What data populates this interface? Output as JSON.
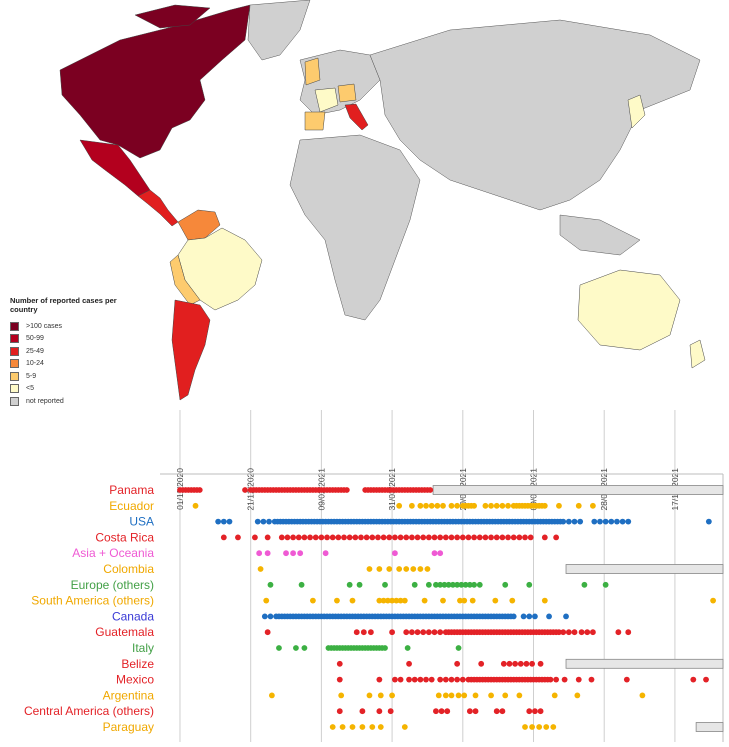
{
  "map": {
    "legend": {
      "title": "Number of reported cases per country",
      "items": [
        {
          "label": ">100 cases",
          "color": "#7b0021"
        },
        {
          "label": "50-99",
          "color": "#b3001e"
        },
        {
          "label": "25-49",
          "color": "#e11f1f"
        },
        {
          "label": "10-24",
          "color": "#f6883a"
        },
        {
          "label": "5-9",
          "color": "#fdcb6e"
        },
        {
          "label": "<5",
          "color": "#fefac8"
        },
        {
          "label": "not reported",
          "color": "#d0d0d0"
        }
      ]
    }
  },
  "chart_data": {
    "type": "scatter",
    "subtype": "timeline",
    "x_axis": {
      "ticks": [
        "01/11/2020",
        "21/12/2020",
        "09/02/2021",
        "31/03/2021",
        "20/05/2021",
        "09/07/2021",
        "28/08/2021",
        "17/10/2021"
      ],
      "range": [
        "2020-10-20",
        "2021-11-20"
      ],
      "tick_label_rotation": "vertical",
      "grid": true
    },
    "series": [
      {
        "name": "Panama",
        "color": "#e32227",
        "dates": [
          "2020-11-01",
          "2020-11-03",
          "2020-11-05",
          "2020-11-07",
          "2020-11-09",
          "2020-11-11",
          "2020-11-13",
          "2020-11-15",
          "2020-12-17",
          "2020-12-21",
          "2020-12-23",
          "2020-12-25",
          "2020-12-27",
          "2020-12-29",
          "2020-12-31",
          "2021-01-02",
          "2021-01-04",
          "2021-01-06",
          "2021-01-08",
          "2021-01-10",
          "2021-01-12",
          "2021-01-14",
          "2021-01-16",
          "2021-01-18",
          "2021-01-20",
          "2021-01-22",
          "2021-01-24",
          "2021-01-26",
          "2021-01-28",
          "2021-01-30",
          "2021-02-01",
          "2021-02-03",
          "2021-02-05",
          "2021-02-07",
          "2021-02-09",
          "2021-02-11",
          "2021-02-13",
          "2021-02-15",
          "2021-02-17",
          "2021-02-19",
          "2021-02-21",
          "2021-02-23",
          "2021-02-25",
          "2021-02-27",
          "2021-03-12",
          "2021-03-14",
          "2021-03-16",
          "2021-03-18",
          "2021-03-20",
          "2021-03-22",
          "2021-03-24",
          "2021-03-26",
          "2021-03-28",
          "2021-03-30",
          "2021-04-01",
          "2021-04-03",
          "2021-04-05",
          "2021-04-07",
          "2021-04-09",
          "2021-04-11",
          "2021-04-13",
          "2021-04-15",
          "2021-04-17",
          "2021-04-19",
          "2021-04-21",
          "2021-04-23",
          "2021-04-25",
          "2021-04-27"
        ],
        "not_reported_from": "2021-04-29"
      },
      {
        "name": "Ecuador",
        "color": "#f5b400",
        "dates": [
          "2020-11-12",
          "2021-04-05",
          "2021-04-14",
          "2021-04-20",
          "2021-04-24",
          "2021-04-28",
          "2021-05-02",
          "2021-05-06",
          "2021-05-12",
          "2021-05-16",
          "2021-05-20",
          "2021-05-22",
          "2021-05-24",
          "2021-05-26",
          "2021-05-28",
          "2021-06-05",
          "2021-06-09",
          "2021-06-13",
          "2021-06-17",
          "2021-06-21",
          "2021-06-25",
          "2021-06-27",
          "2021-06-29",
          "2021-07-01",
          "2021-07-03",
          "2021-07-05",
          "2021-07-07",
          "2021-07-09",
          "2021-07-11",
          "2021-07-13",
          "2021-07-15",
          "2021-07-17",
          "2021-07-27",
          "2021-08-10",
          "2021-08-20"
        ]
      },
      {
        "name": "USA",
        "color": "#1f6fc2",
        "dates": [
          "2020-11-28",
          "2020-12-02",
          "2020-12-06",
          "2020-12-26",
          "2020-12-30",
          "2021-01-03",
          "2021-01-07",
          "2021-01-09",
          "2021-01-11",
          "2021-01-13",
          "2021-01-15",
          "2021-01-17",
          "2021-01-19",
          "2021-01-21",
          "2021-01-23",
          "2021-01-25",
          "2021-01-27",
          "2021-01-29",
          "2021-01-31",
          "2021-02-02",
          "2021-02-04",
          "2021-02-06",
          "2021-02-08",
          "2021-02-10",
          "2021-02-12",
          "2021-02-14",
          "2021-02-16",
          "2021-02-18",
          "2021-02-20",
          "2021-02-22",
          "2021-02-24",
          "2021-02-26",
          "2021-02-28",
          "2021-03-02",
          "2021-03-04",
          "2021-03-06",
          "2021-03-08",
          "2021-03-10",
          "2021-03-12",
          "2021-03-14",
          "2021-03-16",
          "2021-03-18",
          "2021-03-20",
          "2021-03-22",
          "2021-03-24",
          "2021-03-26",
          "2021-03-28",
          "2021-03-30",
          "2021-04-01",
          "2021-04-03",
          "2021-04-05",
          "2021-04-07",
          "2021-04-09",
          "2021-04-11",
          "2021-04-13",
          "2021-04-15",
          "2021-04-17",
          "2021-04-19",
          "2021-04-21",
          "2021-04-23",
          "2021-04-25",
          "2021-04-27",
          "2021-04-29",
          "2021-05-01",
          "2021-05-03",
          "2021-05-05",
          "2021-05-07",
          "2021-05-09",
          "2021-05-11",
          "2021-05-13",
          "2021-05-15",
          "2021-05-17",
          "2021-05-19",
          "2021-05-21",
          "2021-05-23",
          "2021-05-25",
          "2021-05-27",
          "2021-05-29",
          "2021-05-31",
          "2021-06-02",
          "2021-06-04",
          "2021-06-06",
          "2021-06-08",
          "2021-06-10",
          "2021-06-12",
          "2021-06-14",
          "2021-06-16",
          "2021-06-18",
          "2021-06-20",
          "2021-06-22",
          "2021-06-24",
          "2021-06-26",
          "2021-06-28",
          "2021-06-30",
          "2021-07-02",
          "2021-07-04",
          "2021-07-06",
          "2021-07-08",
          "2021-07-10",
          "2021-07-12",
          "2021-07-14",
          "2021-07-16",
          "2021-07-18",
          "2021-07-20",
          "2021-07-22",
          "2021-07-24",
          "2021-07-26",
          "2021-07-28",
          "2021-07-30",
          "2021-08-03",
          "2021-08-07",
          "2021-08-11",
          "2021-08-21",
          "2021-08-25",
          "2021-08-29",
          "2021-09-02",
          "2021-09-06",
          "2021-09-10",
          "2021-09-14",
          "2021-11-10"
        ]
      },
      {
        "name": "Costa Rica",
        "color": "#e32227",
        "dates": [
          "2020-12-02",
          "2020-12-12",
          "2020-12-24",
          "2021-01-02",
          "2021-01-12",
          "2021-01-16",
          "2021-01-20",
          "2021-01-24",
          "2021-01-28",
          "2021-02-01",
          "2021-02-05",
          "2021-02-09",
          "2021-02-13",
          "2021-02-17",
          "2021-02-21",
          "2021-02-25",
          "2021-03-01",
          "2021-03-05",
          "2021-03-09",
          "2021-03-13",
          "2021-03-17",
          "2021-03-21",
          "2021-03-25",
          "2021-03-29",
          "2021-04-02",
          "2021-04-06",
          "2021-04-10",
          "2021-04-14",
          "2021-04-18",
          "2021-04-22",
          "2021-04-26",
          "2021-04-30",
          "2021-05-04",
          "2021-05-08",
          "2021-05-12",
          "2021-05-16",
          "2021-05-20",
          "2021-05-24",
          "2021-05-28",
          "2021-06-01",
          "2021-06-05",
          "2021-06-09",
          "2021-06-13",
          "2021-06-17",
          "2021-06-21",
          "2021-06-25",
          "2021-06-29",
          "2021-07-03",
          "2021-07-07",
          "2021-07-17",
          "2021-07-25"
        ]
      },
      {
        "name": "Asia + Oceania",
        "color": "#ef5ad4",
        "dates": [
          "2020-12-27",
          "2021-01-02",
          "2021-01-15",
          "2021-01-20",
          "2021-01-25",
          "2021-02-12",
          "2021-04-02",
          "2021-04-30",
          "2021-05-04"
        ]
      },
      {
        "name": "Colombia",
        "color": "#f5b400",
        "dates": [
          "2020-12-28",
          "2021-03-15",
          "2021-03-22",
          "2021-03-29",
          "2021-04-05",
          "2021-04-10",
          "2021-04-15",
          "2021-04-20",
          "2021-04-25"
        ],
        "not_reported_from": "2021-08-01"
      },
      {
        "name": "Europe (others)",
        "color": "#3cb043",
        "dates": [
          "2021-01-04",
          "2021-01-26",
          "2021-03-01",
          "2021-03-08",
          "2021-03-26",
          "2021-04-16",
          "2021-04-26",
          "2021-05-01",
          "2021-05-04",
          "2021-05-07",
          "2021-05-10",
          "2021-05-13",
          "2021-05-16",
          "2021-05-19",
          "2021-05-22",
          "2021-05-25",
          "2021-05-28",
          "2021-06-01",
          "2021-06-19",
          "2021-07-06",
          "2021-08-14",
          "2021-08-29"
        ]
      },
      {
        "name": "South America (others)",
        "color": "#f5b400",
        "dates": [
          "2021-01-01",
          "2021-02-03",
          "2021-02-20",
          "2021-03-03",
          "2021-03-22",
          "2021-03-25",
          "2021-03-28",
          "2021-03-31",
          "2021-04-03",
          "2021-04-06",
          "2021-04-09",
          "2021-04-23",
          "2021-05-06",
          "2021-05-18",
          "2021-05-21",
          "2021-05-27",
          "2021-06-12",
          "2021-06-24",
          "2021-07-17",
          "2021-11-13"
        ]
      },
      {
        "name": "Canada",
        "color": "#1f6fc2",
        "dates": [
          "2020-12-31",
          "2021-01-04",
          "2021-01-08",
          "2021-01-10",
          "2021-01-12",
          "2021-01-14",
          "2021-01-16",
          "2021-01-18",
          "2021-01-20",
          "2021-01-22",
          "2021-01-24",
          "2021-01-26",
          "2021-01-28",
          "2021-01-30",
          "2021-02-01",
          "2021-02-03",
          "2021-02-05",
          "2021-02-07",
          "2021-02-09",
          "2021-02-11",
          "2021-02-13",
          "2021-02-15",
          "2021-02-17",
          "2021-02-19",
          "2021-02-21",
          "2021-02-23",
          "2021-02-25",
          "2021-02-27",
          "2021-03-01",
          "2021-03-03",
          "2021-03-05",
          "2021-03-07",
          "2021-03-09",
          "2021-03-11",
          "2021-03-13",
          "2021-03-15",
          "2021-03-17",
          "2021-03-19",
          "2021-03-21",
          "2021-03-23",
          "2021-03-25",
          "2021-03-27",
          "2021-03-29",
          "2021-03-31",
          "2021-04-02",
          "2021-04-04",
          "2021-04-06",
          "2021-04-08",
          "2021-04-10",
          "2021-04-12",
          "2021-04-14",
          "2021-04-16",
          "2021-04-18",
          "2021-04-20",
          "2021-04-22",
          "2021-04-24",
          "2021-04-26",
          "2021-04-28",
          "2021-04-30",
          "2021-05-02",
          "2021-05-04",
          "2021-05-06",
          "2021-05-08",
          "2021-05-10",
          "2021-05-12",
          "2021-05-14",
          "2021-05-16",
          "2021-05-18",
          "2021-05-20",
          "2021-05-22",
          "2021-05-24",
          "2021-05-26",
          "2021-05-28",
          "2021-05-30",
          "2021-06-01",
          "2021-06-03",
          "2021-06-05",
          "2021-06-07",
          "2021-06-09",
          "2021-06-11",
          "2021-06-13",
          "2021-06-15",
          "2021-06-17",
          "2021-06-19",
          "2021-06-21",
          "2021-06-23",
          "2021-06-25",
          "2021-07-02",
          "2021-07-06",
          "2021-07-10",
          "2021-07-20",
          "2021-08-01"
        ]
      },
      {
        "name": "Guatemala",
        "color": "#e32227",
        "dates": [
          "2021-01-02",
          "2021-03-06",
          "2021-03-11",
          "2021-03-16",
          "2021-03-31",
          "2021-04-10",
          "2021-04-14",
          "2021-04-18",
          "2021-04-22",
          "2021-04-26",
          "2021-04-30",
          "2021-05-04",
          "2021-05-08",
          "2021-05-10",
          "2021-05-12",
          "2021-05-14",
          "2021-05-16",
          "2021-05-18",
          "2021-05-20",
          "2021-05-22",
          "2021-05-24",
          "2021-05-26",
          "2021-05-28",
          "2021-05-30",
          "2021-06-01",
          "2021-06-03",
          "2021-06-05",
          "2021-06-07",
          "2021-06-09",
          "2021-06-11",
          "2021-06-13",
          "2021-06-15",
          "2021-06-17",
          "2021-06-19",
          "2021-06-21",
          "2021-06-23",
          "2021-06-25",
          "2021-06-27",
          "2021-06-29",
          "2021-07-01",
          "2021-07-03",
          "2021-07-05",
          "2021-07-07",
          "2021-07-09",
          "2021-07-11",
          "2021-07-13",
          "2021-07-15",
          "2021-07-17",
          "2021-07-19",
          "2021-07-21",
          "2021-07-23",
          "2021-07-25",
          "2021-07-27",
          "2021-07-30",
          "2021-08-03",
          "2021-08-07",
          "2021-08-12",
          "2021-08-16",
          "2021-08-20",
          "2021-09-07",
          "2021-09-14"
        ]
      },
      {
        "name": "Italy",
        "color": "#3cb043",
        "dates": [
          "2021-01-10",
          "2021-01-22",
          "2021-01-28",
          "2021-02-14",
          "2021-02-16",
          "2021-02-18",
          "2021-02-20",
          "2021-02-22",
          "2021-02-24",
          "2021-02-26",
          "2021-02-28",
          "2021-03-02",
          "2021-03-04",
          "2021-03-06",
          "2021-03-08",
          "2021-03-10",
          "2021-03-12",
          "2021-03-14",
          "2021-03-16",
          "2021-03-18",
          "2021-03-20",
          "2021-03-22",
          "2021-03-24",
          "2021-03-26",
          "2021-04-11",
          "2021-05-17"
        ]
      },
      {
        "name": "Belize",
        "color": "#e32227",
        "dates": [
          "2021-02-22",
          "2021-04-12",
          "2021-05-16",
          "2021-06-02",
          "2021-06-18",
          "2021-06-22",
          "2021-06-26",
          "2021-06-30",
          "2021-07-04",
          "2021-07-08",
          "2021-07-14"
        ],
        "not_reported_from": "2021-08-01"
      },
      {
        "name": "Mexico",
        "color": "#e32227",
        "dates": [
          "2021-02-22",
          "2021-03-22",
          "2021-04-02",
          "2021-04-06",
          "2021-04-12",
          "2021-04-16",
          "2021-04-20",
          "2021-04-24",
          "2021-04-28",
          "2021-05-04",
          "2021-05-08",
          "2021-05-12",
          "2021-05-16",
          "2021-05-20",
          "2021-05-24",
          "2021-05-26",
          "2021-05-28",
          "2021-05-30",
          "2021-06-01",
          "2021-06-03",
          "2021-06-05",
          "2021-06-07",
          "2021-06-09",
          "2021-06-11",
          "2021-06-13",
          "2021-06-15",
          "2021-06-17",
          "2021-06-19",
          "2021-06-21",
          "2021-06-23",
          "2021-06-25",
          "2021-06-27",
          "2021-06-29",
          "2021-07-01",
          "2021-07-03",
          "2021-07-05",
          "2021-07-07",
          "2021-07-09",
          "2021-07-11",
          "2021-07-13",
          "2021-07-15",
          "2021-07-17",
          "2021-07-19",
          "2021-07-21",
          "2021-07-25",
          "2021-07-31",
          "2021-08-10",
          "2021-08-19",
          "2021-09-13",
          "2021-10-30",
          "2021-11-08"
        ]
      },
      {
        "name": "Argentina",
        "color": "#f5b400",
        "dates": [
          "2021-01-05",
          "2021-02-23",
          "2021-03-15",
          "2021-03-23",
          "2021-03-31",
          "2021-05-03",
          "2021-05-08",
          "2021-05-12",
          "2021-05-17",
          "2021-05-21",
          "2021-05-29",
          "2021-06-09",
          "2021-06-19",
          "2021-06-29",
          "2021-07-24",
          "2021-08-09",
          "2021-09-24"
        ]
      },
      {
        "name": "Central America (others)",
        "color": "#e32227",
        "dates": [
          "2021-02-22",
          "2021-03-10",
          "2021-03-22",
          "2021-03-30",
          "2021-05-01",
          "2021-05-05",
          "2021-05-09",
          "2021-05-25",
          "2021-05-29",
          "2021-06-13",
          "2021-06-17",
          "2021-07-06",
          "2021-07-10",
          "2021-07-14"
        ]
      },
      {
        "name": "Paraguay",
        "color": "#f5b400",
        "dates": [
          "2021-02-17",
          "2021-02-24",
          "2021-03-03",
          "2021-03-10",
          "2021-03-17",
          "2021-03-23",
          "2021-04-09",
          "2021-07-03",
          "2021-07-08",
          "2021-07-13",
          "2021-07-18",
          "2021-07-23"
        ],
        "not_reported_from": "2021-11-01"
      }
    ]
  },
  "label_colors": {
    "Panama": "#e32227",
    "Ecuador": "#f0a800",
    "USA": "#1f6fc2",
    "Costa Rica": "#e32227",
    "Asia + Oceania": "#ef5ad4",
    "Colombia": "#f0a800",
    "Europe (others)": "#43a047",
    "South America (others)": "#f0a800",
    "Canada": "#3a3ad6",
    "Guatemala": "#e32227",
    "Italy": "#43a047",
    "Belize": "#e32227",
    "Mexico": "#e32227",
    "Argentina": "#f0a800",
    "Central America (others)": "#e32227",
    "Paraguay": "#f0a800"
  },
  "not_reported_color": "#e6e6e6"
}
